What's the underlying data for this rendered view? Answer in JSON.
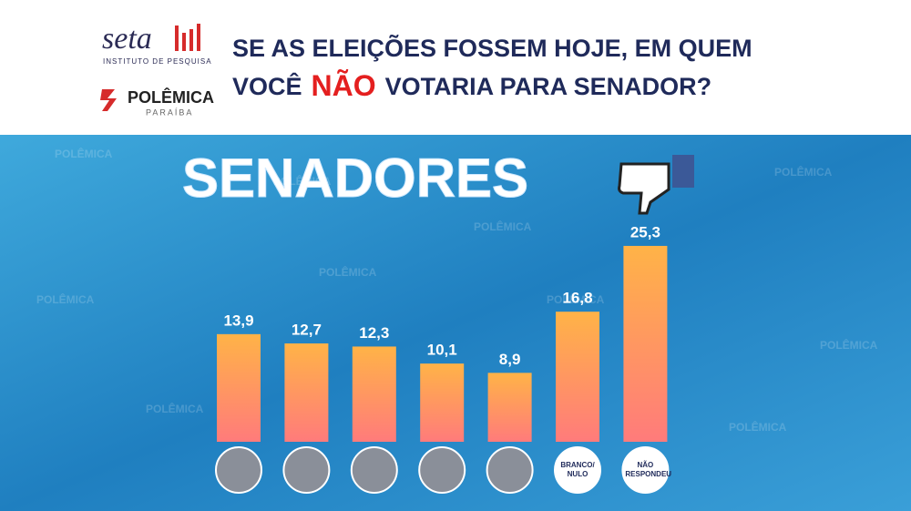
{
  "header": {
    "logo_name": "seta",
    "logo_subtitle": "INSTITUTO DE PESQUISA",
    "partner_name": "POLÊMICA",
    "partner_subtitle": "PARAÍBA",
    "watermark": "POLÊMICA"
  },
  "chart_data": {
    "type": "bar",
    "title": [
      "SE AS ELEIÇÕES FOSSEM HOJE, EM QUEM",
      "VOCÊ",
      "NÃO",
      "VOTARIA PARA SENADOR?"
    ],
    "heading": "SENADORES",
    "categories": [
      null,
      null,
      null,
      null,
      null,
      "BRANCO/ NULO",
      "NÃO RESPONDEU"
    ],
    "values": [
      13.9,
      12.7,
      12.3,
      10.1,
      8.9,
      16.8,
      25.3
    ],
    "value_labels": [
      "13,9",
      "12,7",
      "12,3",
      "10,1",
      "8,9",
      "16,8",
      "25,3"
    ],
    "color_top": "#ffb347",
    "color_bottom": "#ff7b7b"
  }
}
